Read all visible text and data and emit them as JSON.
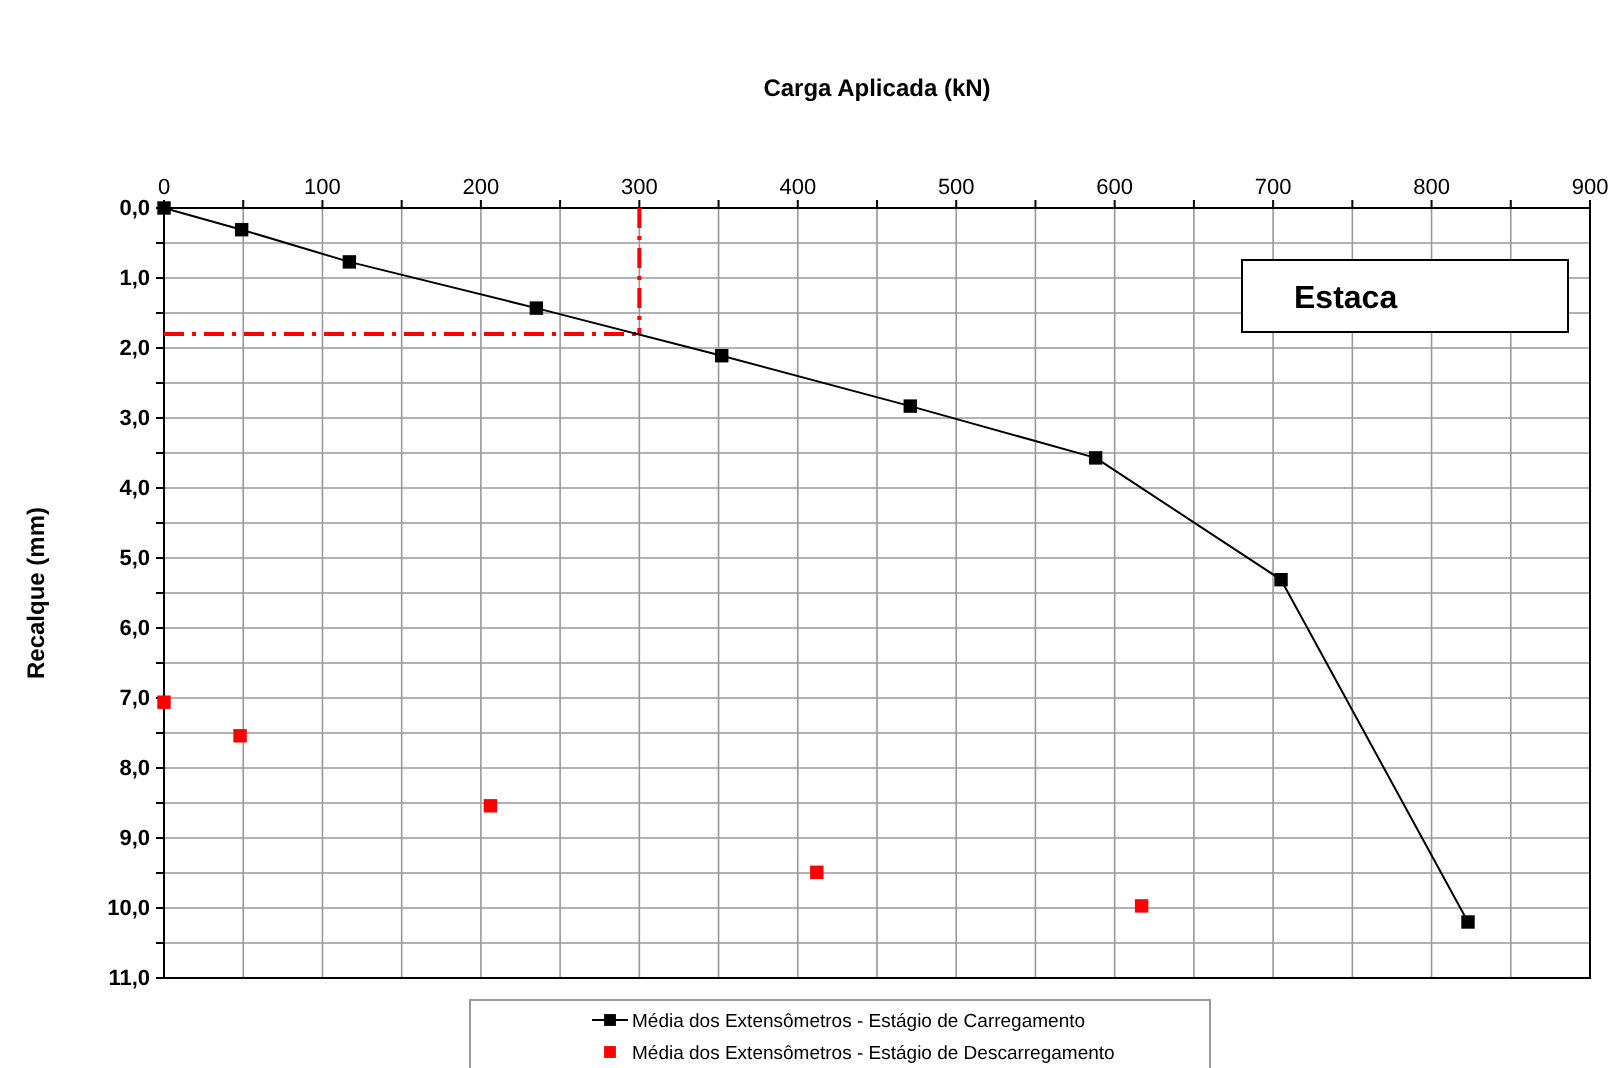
{
  "chart_data": {
    "type": "line",
    "xlabel": "Carga Aplicada (kN)",
    "ylabel": "Recalque (mm)",
    "xlim": [
      0,
      900
    ],
    "ylim": [
      11,
      0
    ],
    "xticks": [
      0,
      {
        "value": 50,
        "label": null
      },
      100,
      {
        "value": 150,
        "label": null
      },
      200,
      {
        "value": 250,
        "label": null
      },
      300,
      {
        "value": 350,
        "label": null
      },
      400,
      {
        "value": 450,
        "label": null
      },
      500,
      {
        "value": 550,
        "label": null
      },
      600,
      {
        "value": 650,
        "label": null
      },
      700,
      {
        "value": 750,
        "label": null
      },
      800,
      {
        "value": 850,
        "label": null
      },
      900
    ],
    "yticks": [
      {
        "value": 0,
        "label": "0,0"
      },
      {
        "value": 0.5,
        "label": null
      },
      {
        "value": 1,
        "label": "1,0"
      },
      {
        "value": 1.5,
        "label": null
      },
      {
        "value": 2,
        "label": "2,0"
      },
      {
        "value": 2.5,
        "label": null
      },
      {
        "value": 3,
        "label": "3,0"
      },
      {
        "value": 3.5,
        "label": null
      },
      {
        "value": 4,
        "label": "4,0"
      },
      {
        "value": 4.5,
        "label": null
      },
      {
        "value": 5,
        "label": "5,0"
      },
      {
        "value": 5.5,
        "label": null
      },
      {
        "value": 6,
        "label": "6,0"
      },
      {
        "value": 6.5,
        "label": null
      },
      {
        "value": 7,
        "label": "7,0"
      },
      {
        "value": 7.5,
        "label": null
      },
      {
        "value": 8,
        "label": "8,0"
      },
      {
        "value": 8.5,
        "label": null
      },
      {
        "value": 9,
        "label": "9,0"
      },
      {
        "value": 9.5,
        "label": null
      },
      {
        "value": 10,
        "label": "10,0"
      },
      {
        "value": 10.5,
        "label": null
      },
      {
        "value": 11,
        "label": "11,0"
      }
    ],
    "grid": true,
    "legend": "bottom",
    "marker": "square",
    "series": [
      {
        "name": "Média dos Extensômetros - Estágio de Carregamento",
        "color": "#000000",
        "x": [
          0,
          49,
          117,
          235,
          352,
          471,
          588,
          705,
          823
        ],
        "values": [
          0.0,
          0.31,
          0.77,
          1.43,
          2.11,
          2.83,
          3.57,
          5.31,
          10.2
        ]
      },
      {
        "name": "Média dos Extensômetros - Estágio de Descarregamento",
        "type": "scatter",
        "color": "#ff0000",
        "x": [
          0,
          48,
          206,
          412,
          617
        ],
        "values": [
          7.06,
          7.54,
          8.54,
          9.49,
          9.97
        ]
      }
    ],
    "ref_lines": [
      {
        "axis": "x",
        "value": 300,
        "color": "#ff0000",
        "line_style": "dashdot"
      },
      {
        "axis": "y",
        "value": 1.8,
        "color": "#ff0000",
        "line_style": "dashdot"
      }
    ],
    "annotations": [
      "Estaca"
    ]
  }
}
